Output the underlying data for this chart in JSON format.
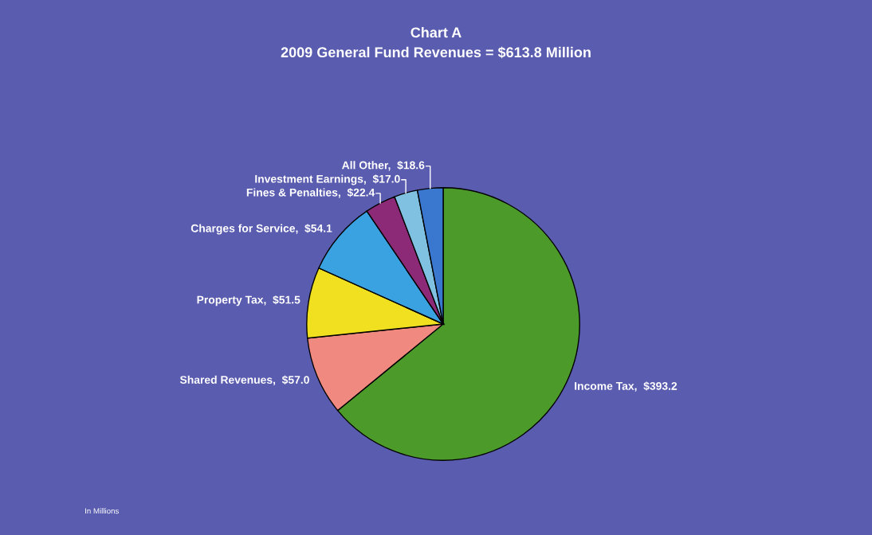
{
  "chart_data": {
    "type": "pie",
    "title": "Chart A",
    "subtitle": "2009 General Fund Revenues = $613.8 Million",
    "categories": [
      "Income Tax",
      "Shared Revenues",
      "Property Tax",
      "Charges for Service",
      "Fines & Penalties",
      "Investment Earnings",
      "All Other"
    ],
    "values": [
      393.2,
      57.0,
      51.5,
      54.1,
      22.4,
      17.0,
      18.6
    ],
    "value_labels": [
      "$393.2",
      "$57.0",
      "$51.5",
      "$54.1",
      "$22.4",
      "$17.0",
      "$18.6"
    ],
    "colors": [
      "#4b9a2a",
      "#f08a80",
      "#f0e020",
      "#3aa2e0",
      "#8c2a78",
      "#80c0e0",
      "#3a78d0"
    ],
    "annotations": [
      "In Millions"
    ]
  }
}
